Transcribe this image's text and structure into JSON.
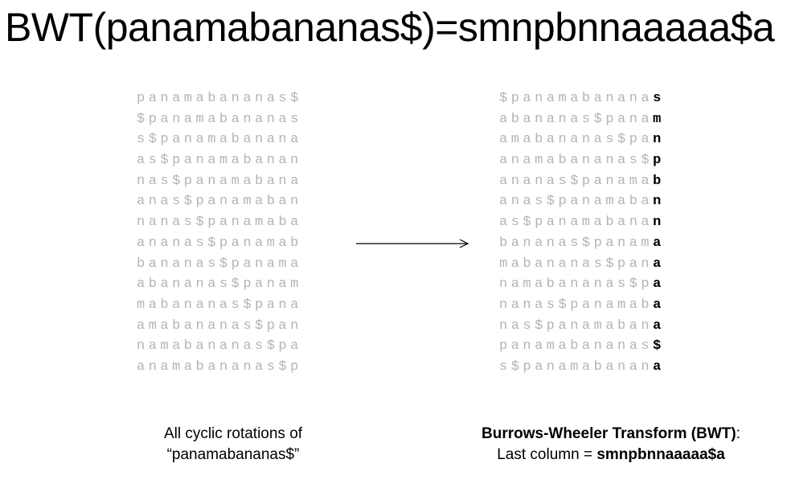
{
  "title": "BWT(panamabananas$)=smnpbnnaaaaa$a",
  "rotations": [
    "panamabananas$",
    "$panamabananas",
    "s$panamabanana",
    "as$panamabanan",
    "nas$panamabana",
    "anas$panamaban",
    "nanas$panamaba",
    "ananas$panamab",
    "bananas$panama",
    "abananas$panam",
    "mabananas$pana",
    "amabananas$pan",
    "namabananas$pa",
    "anamabananas$p"
  ],
  "sorted_rotations": [
    {
      "prefix": "$panamabanana",
      "last": "s"
    },
    {
      "prefix": "abananas$pana",
      "last": "m"
    },
    {
      "prefix": "amabananas$pa",
      "last": "n"
    },
    {
      "prefix": "anamabananas$",
      "last": "p"
    },
    {
      "prefix": "ananas$panama",
      "last": "b"
    },
    {
      "prefix": "anas$panamaba",
      "last": "n"
    },
    {
      "prefix": "as$panamabana",
      "last": "n"
    },
    {
      "prefix": "bananas$panam",
      "last": "a"
    },
    {
      "prefix": "mabananas$pan",
      "last": "a"
    },
    {
      "prefix": "namabananas$p",
      "last": "a"
    },
    {
      "prefix": "nanas$panamab",
      "last": "a"
    },
    {
      "prefix": "nas$panamaban",
      "last": "a"
    },
    {
      "prefix": "panamabananas",
      "last": "$"
    },
    {
      "prefix": "s$panamabanan",
      "last": "a"
    }
  ],
  "caption_left": {
    "line1": "All cyclic rotations of",
    "line2": "“panamabananas$”"
  },
  "caption_right": {
    "title": "Burrows-Wheeler Transform (BWT)",
    "colon": ":",
    "line2_prefix": "Last column = ",
    "line2_value": "smnpbnnaaaaa$a"
  },
  "colors": {
    "faded_text": "#b4b4b4",
    "text": "#000000"
  }
}
